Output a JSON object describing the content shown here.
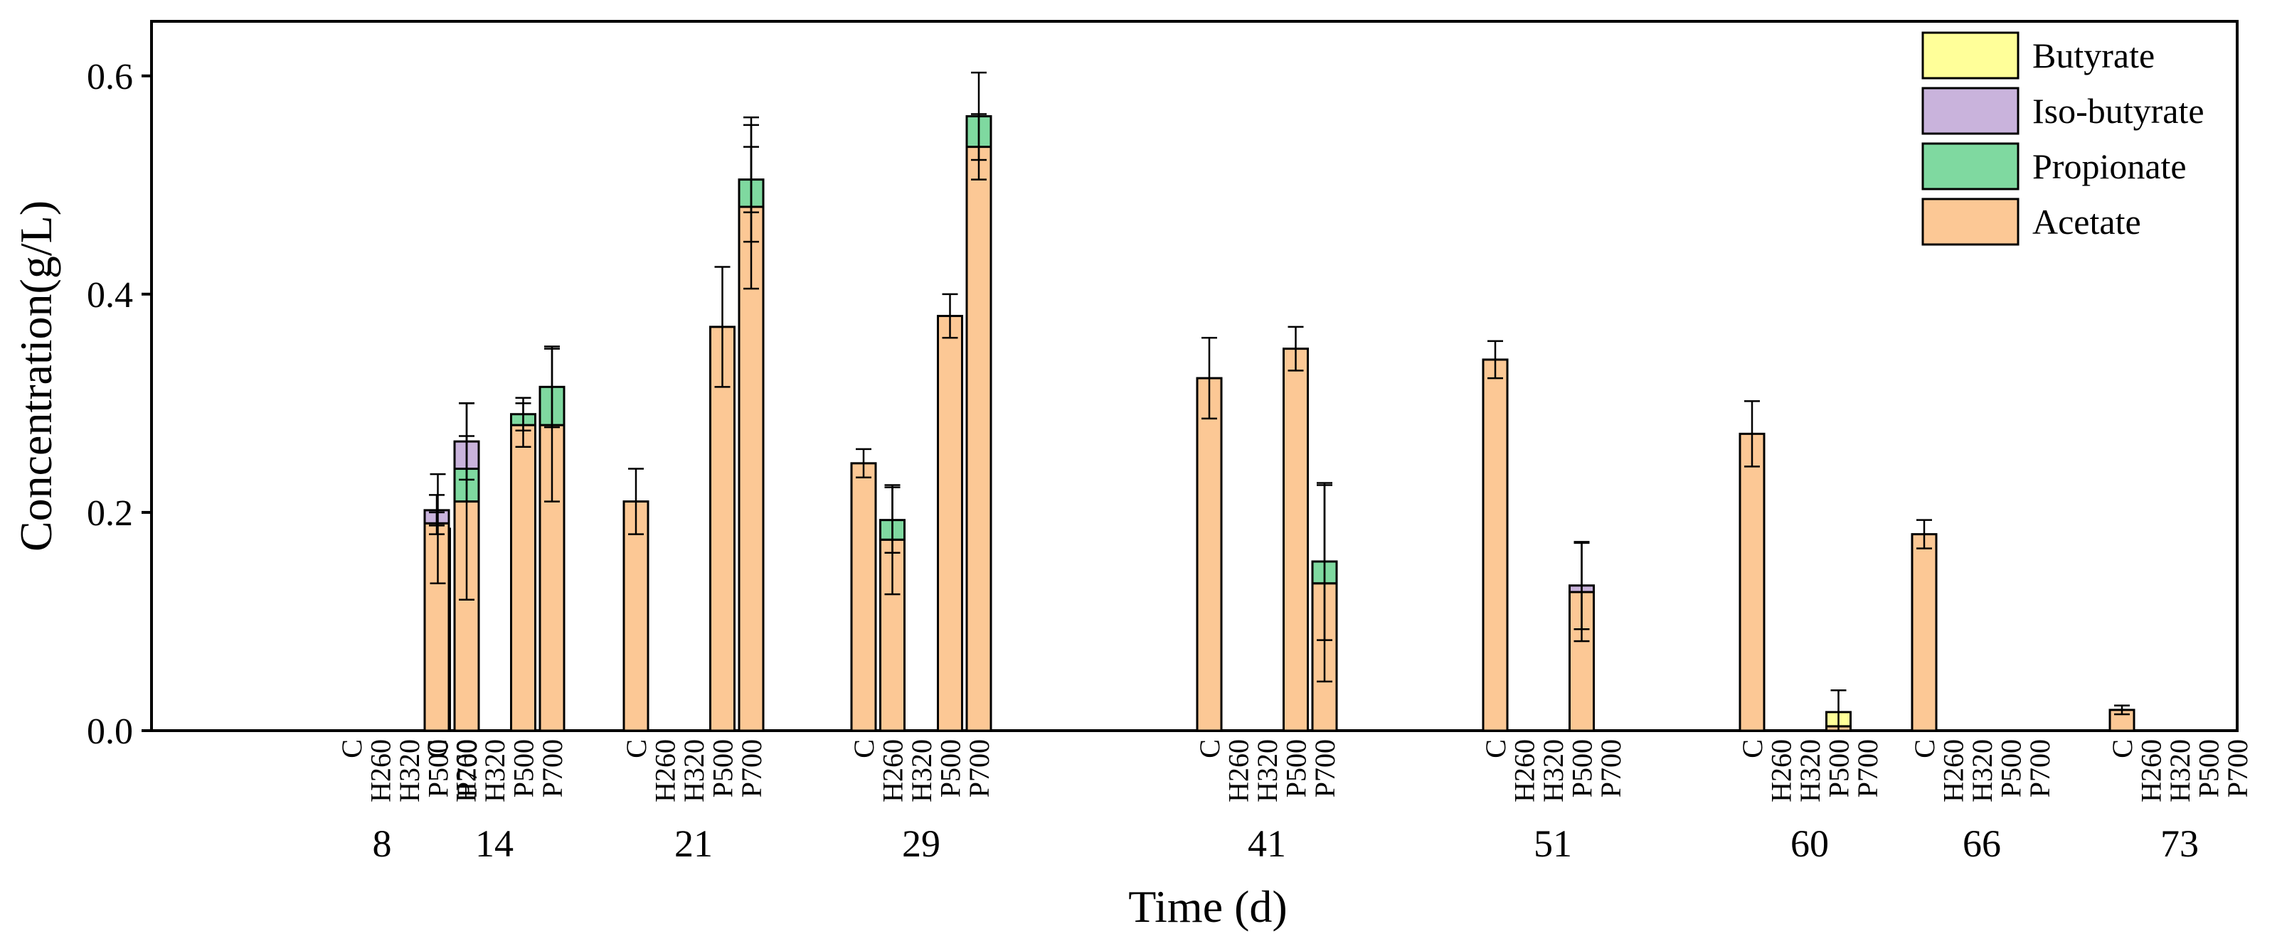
{
  "chart_data": {
    "type": "bar",
    "stacked": true,
    "ylabel": "Concentration(g/L)",
    "xlabel": "Time (d)",
    "ylim": [
      0,
      0.65
    ],
    "yticks": [
      "0.0",
      "0.2",
      "0.4",
      "0.6"
    ],
    "ytick_values": [
      0,
      0.2,
      0.4,
      0.6
    ],
    "treatments": [
      "C",
      "H260",
      "H320",
      "P500",
      "P700"
    ],
    "days": [
      "8",
      "14",
      "21",
      "29",
      "41",
      "51",
      "60",
      "66",
      "73"
    ],
    "legend": [
      {
        "name": "Butyrate",
        "color": "#ffff99"
      },
      {
        "name": "Iso-butyrate",
        "color": "#c9b3dc"
      },
      {
        "name": "Propionate",
        "color": "#7fd9a0"
      },
      {
        "name": "Acetate",
        "color": "#fcc895"
      }
    ],
    "legend_position": "top-right",
    "bars": [
      {
        "day": "8",
        "treatment": "C",
        "acetate": 0,
        "propionate": 0,
        "isobutyrate": 0,
        "butyrate": 0
      },
      {
        "day": "8",
        "treatment": "H260",
        "acetate": 0,
        "propionate": 0,
        "isobutyrate": 0,
        "butyrate": 0
      },
      {
        "day": "8",
        "treatment": "H320",
        "acetate": 0,
        "propionate": 0,
        "isobutyrate": 0,
        "butyrate": 0
      },
      {
        "day": "8",
        "treatment": "P500",
        "acetate": 0.185,
        "propionate": 0,
        "isobutyrate": 0,
        "butyrate": 0,
        "error": 0.05
      },
      {
        "day": "8",
        "treatment": "P700",
        "acetate": 0.21,
        "propionate": 0.03,
        "isobutyrate": 0.025,
        "butyrate": 0,
        "error": 0.035,
        "inner_errors": [
          {
            "value": 0.21,
            "error": 0.09
          },
          {
            "value": 0.24,
            "error": 0.03
          }
        ]
      },
      {
        "day": "14",
        "treatment": "C",
        "acetate": 0.19,
        "propionate": 0,
        "isobutyrate": 0.012,
        "butyrate": 0,
        "error": 0.014,
        "inner_errors": [
          {
            "value": 0.19,
            "error": 0.01
          }
        ]
      },
      {
        "day": "14",
        "treatment": "H260",
        "acetate": 0,
        "propionate": 0,
        "isobutyrate": 0,
        "butyrate": 0
      },
      {
        "day": "14",
        "treatment": "H320",
        "acetate": 0,
        "propionate": 0,
        "isobutyrate": 0,
        "butyrate": 0
      },
      {
        "day": "14",
        "treatment": "P500",
        "acetate": 0.28,
        "propionate": 0.01,
        "isobutyrate": 0,
        "butyrate": 0,
        "error": 0.015,
        "inner_errors": [
          {
            "value": 0.28,
            "error": 0.02
          }
        ]
      },
      {
        "day": "14",
        "treatment": "P700",
        "acetate": 0.28,
        "propionate": 0.035,
        "isobutyrate": 0,
        "butyrate": 0,
        "error": 0.037,
        "inner_errors": [
          {
            "value": 0.28,
            "error": 0.07
          }
        ]
      },
      {
        "day": "21",
        "treatment": "C",
        "acetate": 0.21,
        "propionate": 0,
        "isobutyrate": 0,
        "butyrate": 0,
        "error": 0.03
      },
      {
        "day": "21",
        "treatment": "H260",
        "acetate": 0,
        "propionate": 0,
        "isobutyrate": 0,
        "butyrate": 0
      },
      {
        "day": "21",
        "treatment": "H320",
        "acetate": 0,
        "propionate": 0,
        "isobutyrate": 0,
        "butyrate": 0
      },
      {
        "day": "21",
        "treatment": "P500",
        "acetate": 0.37,
        "propionate": 0,
        "isobutyrate": 0,
        "butyrate": 0,
        "error": 0.055
      },
      {
        "day": "21",
        "treatment": "P700",
        "acetate": 0.48,
        "propionate": 0.025,
        "isobutyrate": 0,
        "butyrate": 0,
        "error": 0.057,
        "inner_errors": [
          {
            "value": 0.48,
            "error": 0.075
          },
          {
            "value": 0.505,
            "error": 0.03
          }
        ]
      },
      {
        "day": "29",
        "treatment": "C",
        "acetate": 0.245,
        "propionate": 0,
        "isobutyrate": 0,
        "butyrate": 0,
        "error": 0.013
      },
      {
        "day": "29",
        "treatment": "H260",
        "acetate": 0.175,
        "propionate": 0.018,
        "isobutyrate": 0,
        "butyrate": 0,
        "error": 0.03,
        "inner_errors": [
          {
            "value": 0.175,
            "error": 0.05
          }
        ]
      },
      {
        "day": "29",
        "treatment": "H320",
        "acetate": 0,
        "propionate": 0,
        "isobutyrate": 0,
        "butyrate": 0
      },
      {
        "day": "29",
        "treatment": "P500",
        "acetate": 0.38,
        "propionate": 0,
        "isobutyrate": 0,
        "butyrate": 0,
        "error": 0.02
      },
      {
        "day": "29",
        "treatment": "P700",
        "acetate": 0.535,
        "propionate": 0.028,
        "isobutyrate": 0,
        "butyrate": 0,
        "error": 0.04,
        "inner_errors": [
          {
            "value": 0.535,
            "error": 0.03
          }
        ]
      },
      {
        "day": "41",
        "treatment": "C",
        "acetate": 0.323,
        "propionate": 0,
        "isobutyrate": 0,
        "butyrate": 0,
        "error": 0.037
      },
      {
        "day": "41",
        "treatment": "H260",
        "acetate": 0,
        "propionate": 0,
        "isobutyrate": 0,
        "butyrate": 0
      },
      {
        "day": "41",
        "treatment": "H320",
        "acetate": 0,
        "propionate": 0,
        "isobutyrate": 0,
        "butyrate": 0
      },
      {
        "day": "41",
        "treatment": "P500",
        "acetate": 0.35,
        "propionate": 0,
        "isobutyrate": 0,
        "butyrate": 0,
        "error": 0.02
      },
      {
        "day": "41",
        "treatment": "P700",
        "acetate": 0.135,
        "propionate": 0.02,
        "isobutyrate": 0,
        "butyrate": 0,
        "error": 0.072,
        "inner_errors": [
          {
            "value": 0.135,
            "error": 0.09
          }
        ]
      },
      {
        "day": "51",
        "treatment": "C",
        "acetate": 0.34,
        "propionate": 0,
        "isobutyrate": 0,
        "butyrate": 0,
        "error": 0.017
      },
      {
        "day": "51",
        "treatment": "H260",
        "acetate": 0,
        "propionate": 0,
        "isobutyrate": 0,
        "butyrate": 0
      },
      {
        "day": "51",
        "treatment": "H320",
        "acetate": 0,
        "propionate": 0,
        "isobutyrate": 0,
        "butyrate": 0
      },
      {
        "day": "51",
        "treatment": "P500",
        "acetate": 0.127,
        "propionate": 0,
        "isobutyrate": 0.006,
        "butyrate": 0,
        "error": 0.04,
        "inner_errors": [
          {
            "value": 0.127,
            "error": 0.045
          }
        ]
      },
      {
        "day": "51",
        "treatment": "P700",
        "acetate": 0,
        "propionate": 0,
        "isobutyrate": 0,
        "butyrate": 0
      },
      {
        "day": "60",
        "treatment": "C",
        "acetate": 0.272,
        "propionate": 0,
        "isobutyrate": 0,
        "butyrate": 0,
        "error": 0.03
      },
      {
        "day": "60",
        "treatment": "H260",
        "acetate": 0,
        "propionate": 0,
        "isobutyrate": 0,
        "butyrate": 0
      },
      {
        "day": "60",
        "treatment": "H320",
        "acetate": 0,
        "propionate": 0,
        "isobutyrate": 0,
        "butyrate": 0
      },
      {
        "day": "60",
        "treatment": "P500",
        "acetate": 0.004,
        "propionate": 0,
        "isobutyrate": 0,
        "butyrate": 0.013,
        "error": 0.02
      },
      {
        "day": "60",
        "treatment": "P700",
        "acetate": 0,
        "propionate": 0,
        "isobutyrate": 0,
        "butyrate": 0
      },
      {
        "day": "66",
        "treatment": "C",
        "acetate": 0.18,
        "propionate": 0,
        "isobutyrate": 0,
        "butyrate": 0,
        "error": 0.013
      },
      {
        "day": "66",
        "treatment": "H260",
        "acetate": 0,
        "propionate": 0,
        "isobutyrate": 0,
        "butyrate": 0
      },
      {
        "day": "66",
        "treatment": "H320",
        "acetate": 0,
        "propionate": 0,
        "isobutyrate": 0,
        "butyrate": 0
      },
      {
        "day": "66",
        "treatment": "P500",
        "acetate": 0,
        "propionate": 0,
        "isobutyrate": 0,
        "butyrate": 0
      },
      {
        "day": "66",
        "treatment": "P700",
        "acetate": 0,
        "propionate": 0,
        "isobutyrate": 0,
        "butyrate": 0
      },
      {
        "day": "73",
        "treatment": "C",
        "acetate": 0.019,
        "propionate": 0,
        "isobutyrate": 0,
        "butyrate": 0,
        "error": 0.004
      },
      {
        "day": "73",
        "treatment": "H260",
        "acetate": 0,
        "propionate": 0,
        "isobutyrate": 0,
        "butyrate": 0
      },
      {
        "day": "73",
        "treatment": "H320",
        "acetate": 0,
        "propionate": 0,
        "isobutyrate": 0,
        "butyrate": 0
      },
      {
        "day": "73",
        "treatment": "P500",
        "acetate": 0,
        "propionate": 0,
        "isobutyrate": 0,
        "butyrate": 0
      },
      {
        "day": "73",
        "treatment": "P700",
        "acetate": 0,
        "propionate": 0,
        "isobutyrate": 0,
        "butyrate": 0
      }
    ]
  }
}
